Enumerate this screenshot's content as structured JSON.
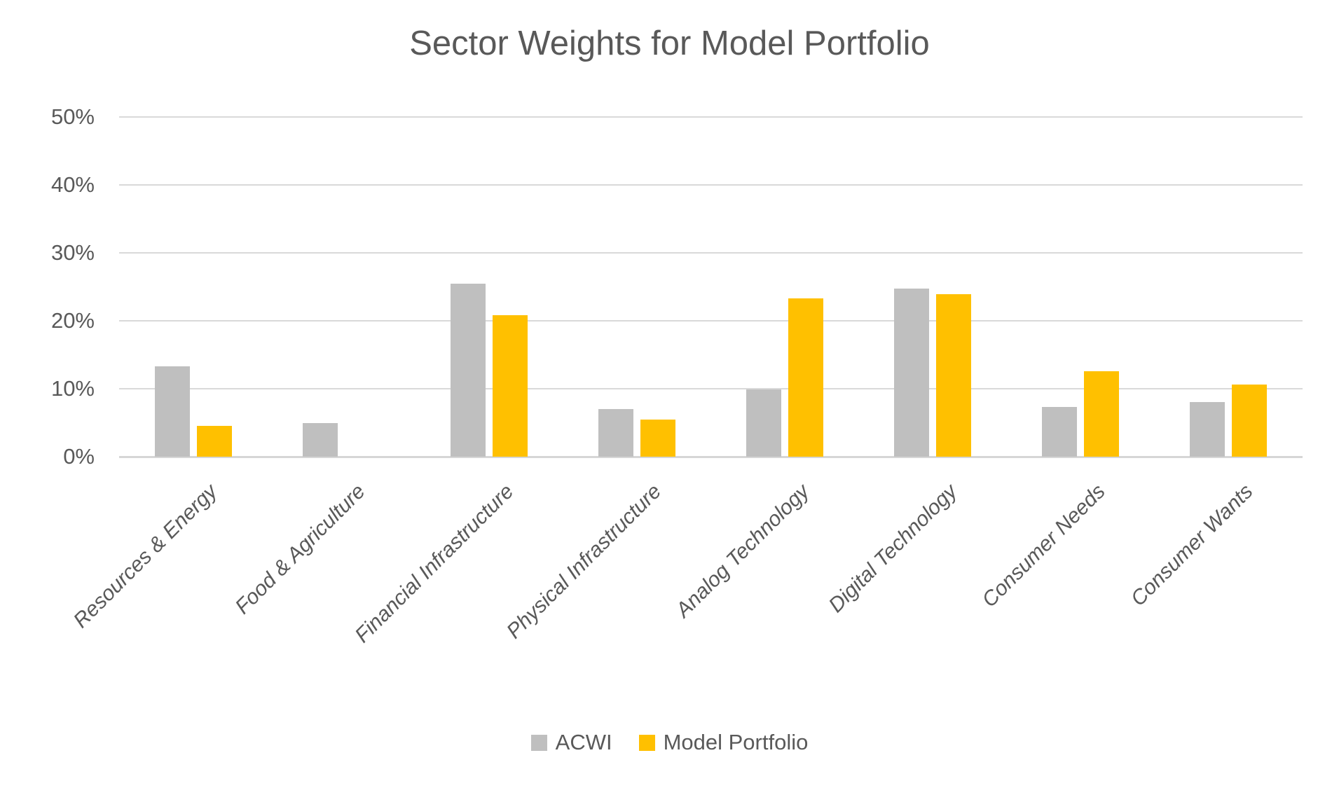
{
  "chart_data": {
    "type": "bar",
    "title": "Sector Weights for Model Portfolio",
    "categories": [
      "Resources & Energy",
      "Food & Agriculture",
      "Financial Infrastructure",
      "Physical Infrastructure",
      "Analog Technology",
      "Digital Technology",
      "Consumer Needs",
      "Consumer Wants"
    ],
    "series": [
      {
        "name": "ACWI",
        "color": "#BFBFBF",
        "values": [
          13.3,
          5.0,
          25.5,
          7.0,
          9.9,
          24.7,
          7.3,
          8.0
        ]
      },
      {
        "name": "Model Portfolio",
        "color": "#FFC000",
        "values": [
          4.5,
          0,
          20.8,
          5.5,
          23.3,
          23.9,
          12.6,
          10.6
        ]
      }
    ],
    "xlabel": "",
    "ylabel": "",
    "ylim": [
      0,
      50
    ],
    "ytick_labels": [
      "0%",
      "10%",
      "20%",
      "30%",
      "40%",
      "50%"
    ],
    "grid": true,
    "legend_position": "bottom",
    "colors": {
      "text": "#595959",
      "gridline": "#D9D9D9",
      "background": "#FFFFFF",
      "acwi_bar": "#BFBFBF",
      "model_portfolio_bar": "#FFC000"
    }
  }
}
